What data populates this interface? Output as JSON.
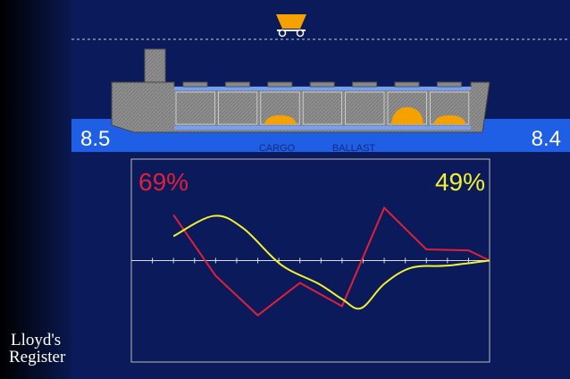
{
  "draft_aft": "8.5",
  "draft_fwd": "8.4",
  "legend": {
    "cargo": "CARGO",
    "ballast": "BALLAST"
  },
  "logo": {
    "line1": "Lloyd's",
    "line2": "Register"
  },
  "chart_data": {
    "type": "line",
    "xlim": [
      0,
      17
    ],
    "ylim": [
      -100,
      100
    ],
    "xticks": [
      1,
      2,
      3,
      4,
      5,
      6,
      7,
      8,
      9,
      10,
      11,
      12,
      13,
      14,
      15,
      16
    ],
    "series": [
      {
        "name": "69%",
        "color": "#e0203a",
        "smooth": false,
        "x": [
          2,
          4,
          6,
          8,
          10,
          12,
          14,
          16,
          17
        ],
        "values": [
          45,
          -15,
          -54,
          -22,
          -45,
          52,
          11,
          10,
          0
        ]
      },
      {
        "name": "49%",
        "color": "#f2f230",
        "smooth": true,
        "x": [
          2,
          3.9,
          5.3,
          7.1,
          8.9,
          10,
          10.9,
          12,
          13.3,
          15,
          17
        ],
        "values": [
          24,
          44,
          32,
          -4,
          -23,
          -38,
          -47,
          -23,
          -7,
          -5,
          0
        ]
      }
    ]
  }
}
